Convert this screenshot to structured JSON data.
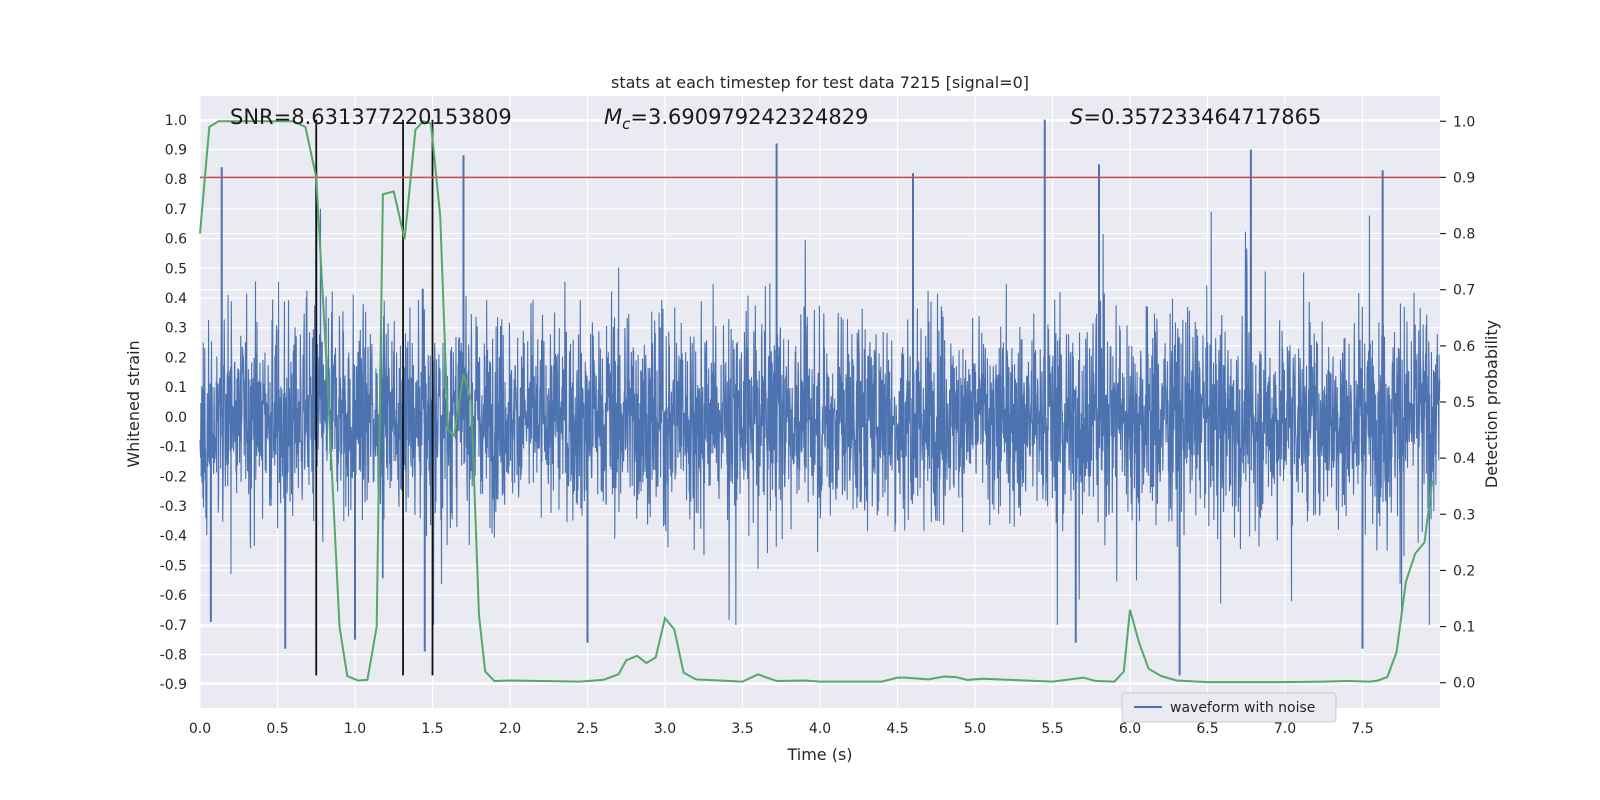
{
  "chart_data": {
    "type": "line",
    "title": "stats at each timestep for test data 7215 [signal=0]",
    "xlabel": "Time (s)",
    "ylabel": "Whitened strain",
    "y2label": "Detection probability",
    "xlim": [
      0.0,
      8.0
    ],
    "ylim": [
      -0.98,
      1.08
    ],
    "y2lim": [
      -0.045,
      1.045
    ],
    "xticks": [
      0.0,
      0.5,
      1.0,
      1.5,
      2.0,
      2.5,
      3.0,
      3.5,
      4.0,
      4.5,
      5.0,
      5.5,
      6.0,
      6.5,
      7.0,
      7.5
    ],
    "xtick_labels": [
      "0.0",
      "0.5",
      "1.0",
      "1.5",
      "2.0",
      "2.5",
      "3.0",
      "3.5",
      "4.0",
      "4.5",
      "5.0",
      "5.5",
      "6.0",
      "6.5",
      "7.0",
      "7.5"
    ],
    "yticks": [
      1.0,
      0.9,
      0.8,
      0.7,
      0.6,
      0.5,
      0.4,
      0.3,
      0.2,
      0.1,
      0.0,
      -0.1,
      -0.2,
      -0.3,
      -0.4,
      -0.5,
      -0.6,
      -0.7,
      -0.8,
      -0.9
    ],
    "ytick_labels": [
      "1.0",
      "0.9",
      "0.8",
      "0.7",
      "0.6",
      "0.5",
      "0.4",
      "0.3",
      "0.2",
      "0.1",
      "0.0",
      "-0.1",
      "-0.2",
      "-0.3",
      "-0.4",
      "-0.5",
      "-0.6",
      "-0.7",
      "-0.8",
      "-0.9"
    ],
    "y2ticks": [
      1.0,
      0.9,
      0.8,
      0.7,
      0.6,
      0.5,
      0.4,
      0.3,
      0.2,
      0.1,
      0.0
    ],
    "y2tick_labels": [
      "1.0",
      "0.9",
      "0.8",
      "0.7",
      "0.6",
      "0.5",
      "0.4",
      "0.3",
      "0.2",
      "0.1",
      "0.0"
    ],
    "grid": true,
    "legend": {
      "entries": [
        "waveform with noise"
      ],
      "placement": "bottom-right"
    },
    "annotations": {
      "snr": "SNR=8.631377220153809",
      "mc_prefix": "M",
      "mc_sub": "c",
      "mc_value": "=3.690979242324829",
      "s_prefix": "S",
      "s_value": "=0.357233464717865"
    },
    "threshold": {
      "y2": 0.9,
      "color": "#c44e52"
    },
    "vlines_x": [
      0.75,
      1.31,
      1.5
    ],
    "vline_ymin": -0.87,
    "vline_ymax": 1.0,
    "waveform": {
      "name": "waveform with noise",
      "color": "#4c72b0",
      "duration_s": 8.0,
      "typical_amplitude": 0.3,
      "spikes": [
        {
          "x": 0.14,
          "y": 0.84
        },
        {
          "x": 0.75,
          "y": 0.83
        },
        {
          "x": 1.7,
          "y": 0.88
        },
        {
          "x": 3.72,
          "y": 0.92
        },
        {
          "x": 4.6,
          "y": 0.82
        },
        {
          "x": 5.45,
          "y": 1.0
        },
        {
          "x": 5.8,
          "y": 0.85
        },
        {
          "x": 6.78,
          "y": 0.9
        },
        {
          "x": 7.63,
          "y": 0.83
        },
        {
          "x": 6.32,
          "y": -0.87
        },
        {
          "x": 0.55,
          "y": -0.78
        },
        {
          "x": 1.0,
          "y": -0.75
        },
        {
          "x": 2.5,
          "y": -0.76
        },
        {
          "x": 5.65,
          "y": -0.76
        },
        {
          "x": 7.5,
          "y": -0.78
        },
        {
          "x": 1.45,
          "y": -0.79
        },
        {
          "x": 0.07,
          "y": -0.69
        }
      ]
    },
    "probability": {
      "color": "#55a868",
      "x": [
        0.0,
        0.06,
        0.12,
        0.3,
        0.6,
        0.68,
        0.75,
        0.82,
        0.9,
        0.95,
        1.02,
        1.08,
        1.14,
        1.18,
        1.25,
        1.32,
        1.39,
        1.44,
        1.49,
        1.55,
        1.6,
        1.64,
        1.7,
        1.75,
        1.8,
        1.84,
        1.9,
        2.0,
        2.2,
        2.45,
        2.6,
        2.7,
        2.75,
        2.82,
        2.88,
        2.94,
        3.0,
        3.06,
        3.12,
        3.2,
        3.5,
        3.6,
        3.72,
        3.9,
        4.0,
        4.4,
        4.5,
        4.55,
        4.7,
        4.8,
        4.88,
        4.95,
        5.05,
        5.5,
        5.7,
        5.78,
        5.9,
        5.96,
        6.0,
        6.06,
        6.12,
        6.2,
        6.3,
        6.5,
        7.0,
        7.25,
        7.4,
        7.55,
        7.6,
        7.66,
        7.72,
        7.78,
        7.84,
        7.9,
        7.95
      ],
      "y": [
        0.8,
        0.99,
        1.0,
        1.0,
        1.0,
        0.99,
        0.9,
        0.55,
        0.1,
        0.012,
        0.004,
        0.005,
        0.1,
        0.87,
        0.875,
        0.79,
        0.985,
        1.0,
        0.996,
        0.83,
        0.45,
        0.44,
        0.55,
        0.5,
        0.12,
        0.02,
        0.003,
        0.004,
        0.003,
        0.002,
        0.005,
        0.015,
        0.04,
        0.048,
        0.035,
        0.045,
        0.115,
        0.095,
        0.018,
        0.006,
        0.002,
        0.015,
        0.003,
        0.004,
        0.002,
        0.002,
        0.009,
        0.009,
        0.006,
        0.011,
        0.01,
        0.005,
        0.007,
        0.002,
        0.009,
        0.003,
        0.002,
        0.02,
        0.13,
        0.07,
        0.025,
        0.012,
        0.004,
        0.001,
        0.001,
        0.002,
        0.003,
        0.002,
        0.004,
        0.01,
        0.055,
        0.18,
        0.23,
        0.25,
        0.36
      ]
    }
  }
}
